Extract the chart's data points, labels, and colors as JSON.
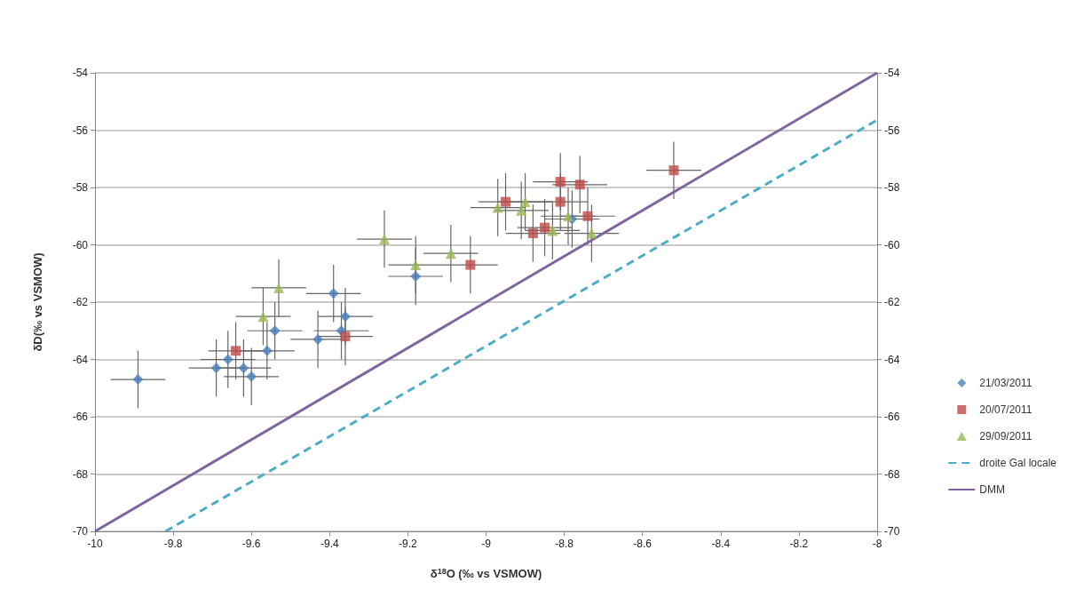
{
  "chart_data": {
    "type": "scatter",
    "xlabel": "δ$^{18}$O (‰ vs VSMOW)",
    "ylabel": "δD(‰ vs VSMOW)",
    "xlim": [
      -10,
      -8
    ],
    "xticks": [
      -10,
      -9.8,
      -9.6,
      -9.4,
      -9.2,
      -9,
      -8.8,
      -8.6,
      -8.4,
      -8.2,
      -8
    ],
    "ylim": [
      -70,
      -54
    ],
    "yticks": [
      -70,
      -68,
      -66,
      -64,
      -62,
      -60,
      -58,
      -56,
      -54
    ],
    "y2lim": [
      -70,
      -54
    ],
    "y2ticks": [
      -70,
      -68,
      -66,
      -64,
      -62,
      -60,
      -58,
      -56,
      -54
    ],
    "grid": "y",
    "legend": "right",
    "series": [
      {
        "name": "21/03/2011",
        "marker": "diamond",
        "color": "#4a7ebb",
        "x": [
          -9.89,
          -9.69,
          -9.66,
          -9.62,
          -9.6,
          -9.56,
          -9.54,
          -9.43,
          -9.39,
          -9.37,
          -9.36,
          -9.18,
          -8.78
        ],
        "values": [
          -64.7,
          -64.3,
          -64.0,
          -64.3,
          -64.6,
          -63.7,
          -63.0,
          -63.3,
          -61.7,
          -63.0,
          -62.5,
          -61.1,
          -59.1
        ],
        "xerrors": [
          0.07,
          0.07,
          0.07,
          0.07,
          0.07,
          0.07,
          0.07,
          0.07,
          0.07,
          0.07,
          0.07,
          0.07,
          0.07
        ],
        "errors": [
          1,
          1,
          1,
          1,
          1,
          1,
          1,
          1,
          1,
          1,
          1,
          1,
          1
        ]
      },
      {
        "name": "20/07/2011",
        "marker": "square",
        "color": "#be4b48",
        "x": [
          -9.64,
          -9.36,
          -9.04,
          -8.95,
          -8.88,
          -8.85,
          -8.81,
          -8.81,
          -8.76,
          -8.74,
          -8.52
        ],
        "values": [
          -63.7,
          -63.2,
          -60.7,
          -58.5,
          -59.6,
          -59.4,
          -57.8,
          -58.5,
          -57.9,
          -59.0,
          -57.4
        ],
        "xerrors": [
          0.07,
          0.07,
          0.07,
          0.07,
          0.07,
          0.07,
          0.07,
          0.07,
          0.07,
          0.07,
          0.07
        ],
        "errors": [
          1,
          1,
          1,
          1,
          1,
          1,
          1,
          1,
          1,
          1,
          1
        ]
      },
      {
        "name": "29/09/2011",
        "marker": "triangle",
        "color": "#98b954",
        "x": [
          -9.57,
          -9.53,
          -9.26,
          -9.18,
          -9.09,
          -8.97,
          -8.9,
          -8.91,
          -8.83,
          -8.79,
          -8.73
        ],
        "values": [
          -62.5,
          -61.5,
          -59.8,
          -60.7,
          -60.3,
          -58.7,
          -58.5,
          -58.8,
          -59.5,
          -59.0,
          -59.6
        ],
        "xerrors": [
          0.07,
          0.07,
          0.07,
          0.07,
          0.07,
          0.07,
          0.07,
          0.07,
          0.07,
          0.07,
          0.07
        ],
        "errors": [
          1,
          1,
          1,
          1,
          1,
          1,
          1,
          1,
          1,
          1,
          1
        ]
      },
      {
        "name": "droite Gal locale",
        "type": "line",
        "marker": "none",
        "line_style": "dashed",
        "color": "#4bacc6",
        "x": [
          -9.82,
          -8
        ],
        "values": [
          -70,
          -55.65
        ]
      },
      {
        "name": "DMM",
        "type": "line",
        "marker": "none",
        "line_style": "solid",
        "color": "#8064a2",
        "x": [
          -10,
          -8
        ],
        "values": [
          -70,
          -54
        ]
      }
    ]
  }
}
